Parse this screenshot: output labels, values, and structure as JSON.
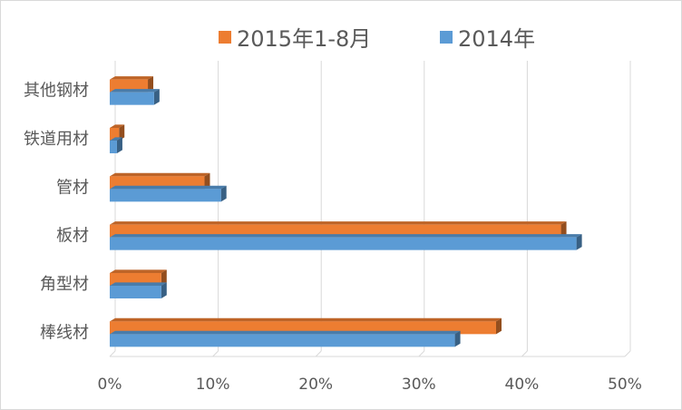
{
  "chart_data": {
    "type": "bar",
    "orientation": "horizontal",
    "style": "3d",
    "categories": [
      "其他钢材",
      "铁道用材",
      "管材",
      "板材",
      "角型材",
      "棒线材"
    ],
    "series": [
      {
        "name": "2015年1-8月",
        "color": "#ED7D31",
        "values": [
          3.7,
          0.9,
          9.2,
          43.8,
          5.0,
          37.5
        ]
      },
      {
        "name": "2014年",
        "color": "#5B9BD5",
        "values": [
          4.3,
          0.7,
          10.8,
          45.3,
          5.0,
          33.5
        ]
      }
    ],
    "xlim": [
      0,
      50
    ],
    "xticks": [
      "0%",
      "10%",
      "20%",
      "30%",
      "40%",
      "50%"
    ],
    "grid": true,
    "legend": "top"
  }
}
